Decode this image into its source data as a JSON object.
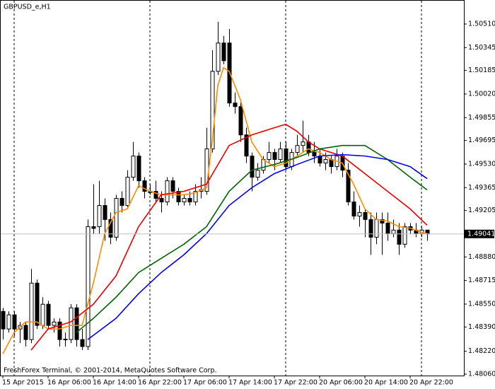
{
  "chart_data": {
    "type": "candlestick",
    "title": "GBPUSD_e,H1",
    "footer": "FreshForex Terminal, © 2001-2014, MetaQuotes Software Corp.",
    "categories": [
      "15 Apr 2015",
      null,
      null,
      null,
      null,
      null,
      null,
      null,
      "16 Apr 06:00",
      null,
      null,
      null,
      null,
      null,
      null,
      null,
      "16 Apr 14:00",
      null,
      null,
      null,
      null,
      null,
      null,
      null,
      "16 Apr 22:00",
      null,
      null,
      null,
      null,
      null,
      null,
      null,
      "17 Apr 06:00",
      null,
      null,
      null,
      null,
      null,
      null,
      null,
      "17 Apr 14:00",
      null,
      null,
      null,
      null,
      null,
      null,
      null,
      "17 Apr 22:00",
      null,
      null,
      null,
      null,
      null,
      null,
      null,
      "20 Apr 06:00",
      null,
      null,
      null,
      null,
      null,
      null,
      null,
      "20 Apr 14:00",
      null,
      null,
      null,
      null,
      null,
      null,
      null,
      "20 Apr 22:00",
      null,
      null,
      null
    ],
    "open": [
      1.48499,
      1.48376,
      1.48475,
      1.48376,
      1.48401,
      1.48302,
      1.48697,
      1.48401,
      1.48549,
      1.48401,
      1.48425,
      1.48302,
      1.48302,
      1.48524,
      1.48302,
      1.48253,
      1.49092,
      1.49092,
      1.4924,
      1.49142,
      1.49018,
      1.4929,
      1.4924,
      1.49438,
      1.49586,
      1.49413,
      1.49339,
      1.49339,
      1.4929,
      1.49265,
      1.49413,
      1.49339,
      1.49265,
      1.4929,
      1.49265,
      1.49339,
      1.49339,
      1.49636,
      1.50179,
      1.50377,
      1.50377,
      1.49957,
      1.49932,
      1.49734,
      1.49586,
      1.49438,
      1.49487,
      1.49562,
      1.49611,
      1.49562,
      1.49636,
      1.49512,
      1.49611,
      1.4966,
      1.49685,
      1.49611,
      1.49586,
      1.49537,
      1.49562,
      1.49512,
      1.49586,
      1.49487,
      1.49265,
      1.49166,
      1.49191,
      1.49142,
      1.49018,
      1.49142,
      1.49117,
      1.49043,
      1.49068,
      1.48969,
      1.49092,
      1.49068,
      1.49043,
      1.49068
    ],
    "high": [
      1.48524,
      1.48499,
      1.48499,
      1.48425,
      1.48425,
      1.48796,
      1.48722,
      1.48598,
      1.48573,
      1.4845,
      1.4845,
      1.48351,
      1.48549,
      1.48549,
      1.48376,
      1.49142,
      1.49389,
      1.49413,
      1.4929,
      1.49191,
      1.49315,
      1.49339,
      1.49487,
      1.49685,
      1.49611,
      1.49438,
      1.49389,
      1.49413,
      1.49339,
      1.49438,
      1.49438,
      1.49364,
      1.49315,
      1.49339,
      1.49389,
      1.49438,
      1.49784,
      1.50327,
      1.50525,
      1.50426,
      1.50475,
      1.50031,
      1.49981,
      1.49784,
      1.49611,
      1.49537,
      1.49586,
      1.49685,
      1.49636,
      1.49685,
      1.49685,
      1.49636,
      1.49734,
      1.49833,
      1.49734,
      1.49685,
      1.49636,
      1.49611,
      1.49586,
      1.49636,
      1.49611,
      1.49537,
      1.49339,
      1.4924,
      1.49216,
      1.49191,
      1.49191,
      1.49191,
      1.49191,
      1.49142,
      1.49117,
      1.49117,
      1.49117,
      1.49117,
      1.49092,
      1.49068
    ],
    "low": [
      1.48302,
      1.48351,
      1.48327,
      1.48277,
      1.48253,
      1.48277,
      1.48376,
      1.48376,
      1.48376,
      1.48351,
      1.48253,
      1.48253,
      1.48277,
      1.48253,
      1.48228,
      1.48228,
      1.49043,
      1.49043,
      1.48993,
      1.48969,
      1.48993,
      1.49191,
      1.49216,
      1.49413,
      1.49364,
      1.4929,
      1.49315,
      1.49265,
      1.49191,
      1.4924,
      1.4929,
      1.4924,
      1.4924,
      1.4924,
      1.4924,
      1.4929,
      1.49315,
      1.49611,
      1.50154,
      1.50228,
      1.49932,
      1.49883,
      1.49685,
      1.49537,
      1.49339,
      1.49413,
      1.49463,
      1.49537,
      1.49487,
      1.49537,
      1.49487,
      1.49487,
      1.49586,
      1.49611,
      1.49586,
      1.49537,
      1.49512,
      1.49487,
      1.49463,
      1.49487,
      1.49438,
      1.4924,
      1.49142,
      1.49092,
      1.49018,
      1.48895,
      1.48969,
      1.48895,
      1.48993,
      1.49018,
      1.48895,
      1.48944,
      1.49043,
      1.49018,
      1.49018,
      1.48993
    ],
    "close": [
      1.48376,
      1.48475,
      1.48376,
      1.48401,
      1.48302,
      1.48697,
      1.48401,
      1.48549,
      1.48401,
      1.48425,
      1.48302,
      1.48305,
      1.48524,
      1.48302,
      1.48253,
      1.49092,
      1.4908,
      1.4924,
      1.49142,
      1.49018,
      1.4929,
      1.4924,
      1.49438,
      1.49586,
      1.49413,
      1.49339,
      1.4933,
      1.4929,
      1.49265,
      1.49413,
      1.49339,
      1.49265,
      1.4929,
      1.49265,
      1.49339,
      1.4935,
      1.49636,
      1.50179,
      1.50377,
      1.50253,
      1.49957,
      1.49932,
      1.49734,
      1.49586,
      1.49438,
      1.49487,
      1.49562,
      1.49611,
      1.49562,
      1.49636,
      1.49512,
      1.49611,
      1.4966,
      1.49685,
      1.49611,
      1.49586,
      1.49537,
      1.49562,
      1.49512,
      1.49586,
      1.49487,
      1.49265,
      1.49166,
      1.49191,
      1.49142,
      1.49018,
      1.49142,
      1.49117,
      1.49043,
      1.49068,
      1.48969,
      1.49092,
      1.49068,
      1.49043,
      1.49068,
      1.49041
    ],
    "up_color": "#ffffff",
    "down_color": "#000000",
    "lines": [
      {
        "color": "#ff8c00",
        "x": [
          0,
          2,
          4,
          6,
          8,
          10,
          12,
          14,
          16,
          18,
          20,
          22,
          24,
          26,
          28,
          30,
          32,
          34,
          36,
          37,
          38,
          39,
          40,
          42,
          44,
          46,
          48,
          50,
          52,
          54,
          56,
          58,
          60,
          62,
          64,
          66,
          68,
          70,
          72,
          74,
          75
        ],
        "values": [
          1.48203,
          1.48351,
          1.48425,
          1.48425,
          1.48376,
          1.48376,
          1.48401,
          1.48401,
          1.48697,
          1.49043,
          1.49191,
          1.49216,
          1.49379,
          1.49339,
          1.49315,
          1.49315,
          1.49315,
          1.49329,
          1.49364,
          1.49685,
          1.5008,
          1.50204,
          1.50179,
          1.49981,
          1.49685,
          1.49562,
          1.49512,
          1.49537,
          1.49586,
          1.49636,
          1.49611,
          1.49562,
          1.49537,
          1.49389,
          1.49216,
          1.49142,
          1.49132,
          1.49092,
          1.49082,
          1.49053,
          1.49043
        ]
      },
      {
        "color": "#ee0000",
        "x": [
          5,
          8,
          12,
          16,
          20,
          24,
          28,
          32,
          36,
          40,
          44,
          48,
          50,
          52,
          54,
          56,
          60,
          64,
          68,
          72,
          75
        ],
        "values": [
          1.48228,
          1.48376,
          1.48425,
          1.48549,
          1.48747,
          1.49092,
          1.49315,
          1.49339,
          1.49389,
          1.4966,
          1.49734,
          1.49784,
          1.49808,
          1.49759,
          1.49685,
          1.49636,
          1.49586,
          1.49463,
          1.49339,
          1.49216,
          1.49102
        ]
      },
      {
        "color": "#006400",
        "x": [
          13,
          16,
          20,
          24,
          28,
          32,
          36,
          40,
          44,
          48,
          52,
          56,
          60,
          64,
          68,
          72,
          75
        ],
        "values": [
          1.48351,
          1.4845,
          1.48598,
          1.48771,
          1.4887,
          1.48969,
          1.49092,
          1.49339,
          1.49487,
          1.49527,
          1.49576,
          1.49636,
          1.4966,
          1.4966,
          1.49562,
          1.49438,
          1.49349
        ]
      },
      {
        "color": "#0000ee",
        "x": [
          15,
          20,
          24,
          28,
          32,
          36,
          40,
          44,
          48,
          52,
          56,
          60,
          64,
          68,
          72,
          75
        ],
        "values": [
          1.48302,
          1.4845,
          1.48623,
          1.48771,
          1.48895,
          1.49043,
          1.4924,
          1.49364,
          1.49463,
          1.49527,
          1.49586,
          1.49596,
          1.49586,
          1.49562,
          1.49512,
          1.49428
        ]
      }
    ],
    "ylim": [
      1.4805,
      1.50673
    ],
    "yticks": [
      {
        "value": 1.5051,
        "label": "1.50510"
      },
      1.50345,
      1.50185,
      {
        "value": 1.5002,
        "label": "1.50020"
      },
      1.49855,
      1.49695,
      {
        "value": 1.4953,
        "label": "1.49530"
      },
      1.49365,
      1.49205,
      {
        "value": 1.4888,
        "label": "1.48880"
      },
      1.48715,
      {
        "value": 1.4855,
        "label": "1.48550"
      },
      {
        "value": 1.4839,
        "label": "1.48390"
      },
      {
        "value": 1.4822,
        "label": "1.48220"
      },
      {
        "value": 1.4806,
        "label": "1.48060"
      }
    ]
  }
}
